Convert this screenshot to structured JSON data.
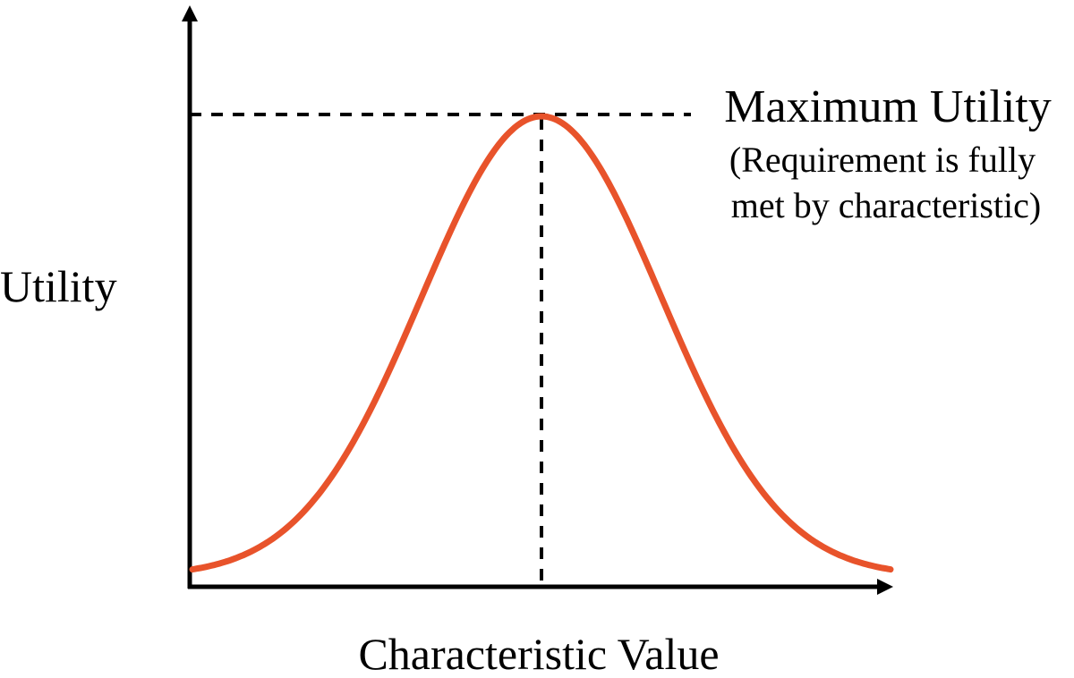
{
  "y_axis_label": "Utility",
  "x_axis_label": "Characteristic Value",
  "annotation": {
    "title": "Maximum Utility",
    "lines": [
      "(Requirement is fully",
      "met by characteristic)"
    ]
  }
}
